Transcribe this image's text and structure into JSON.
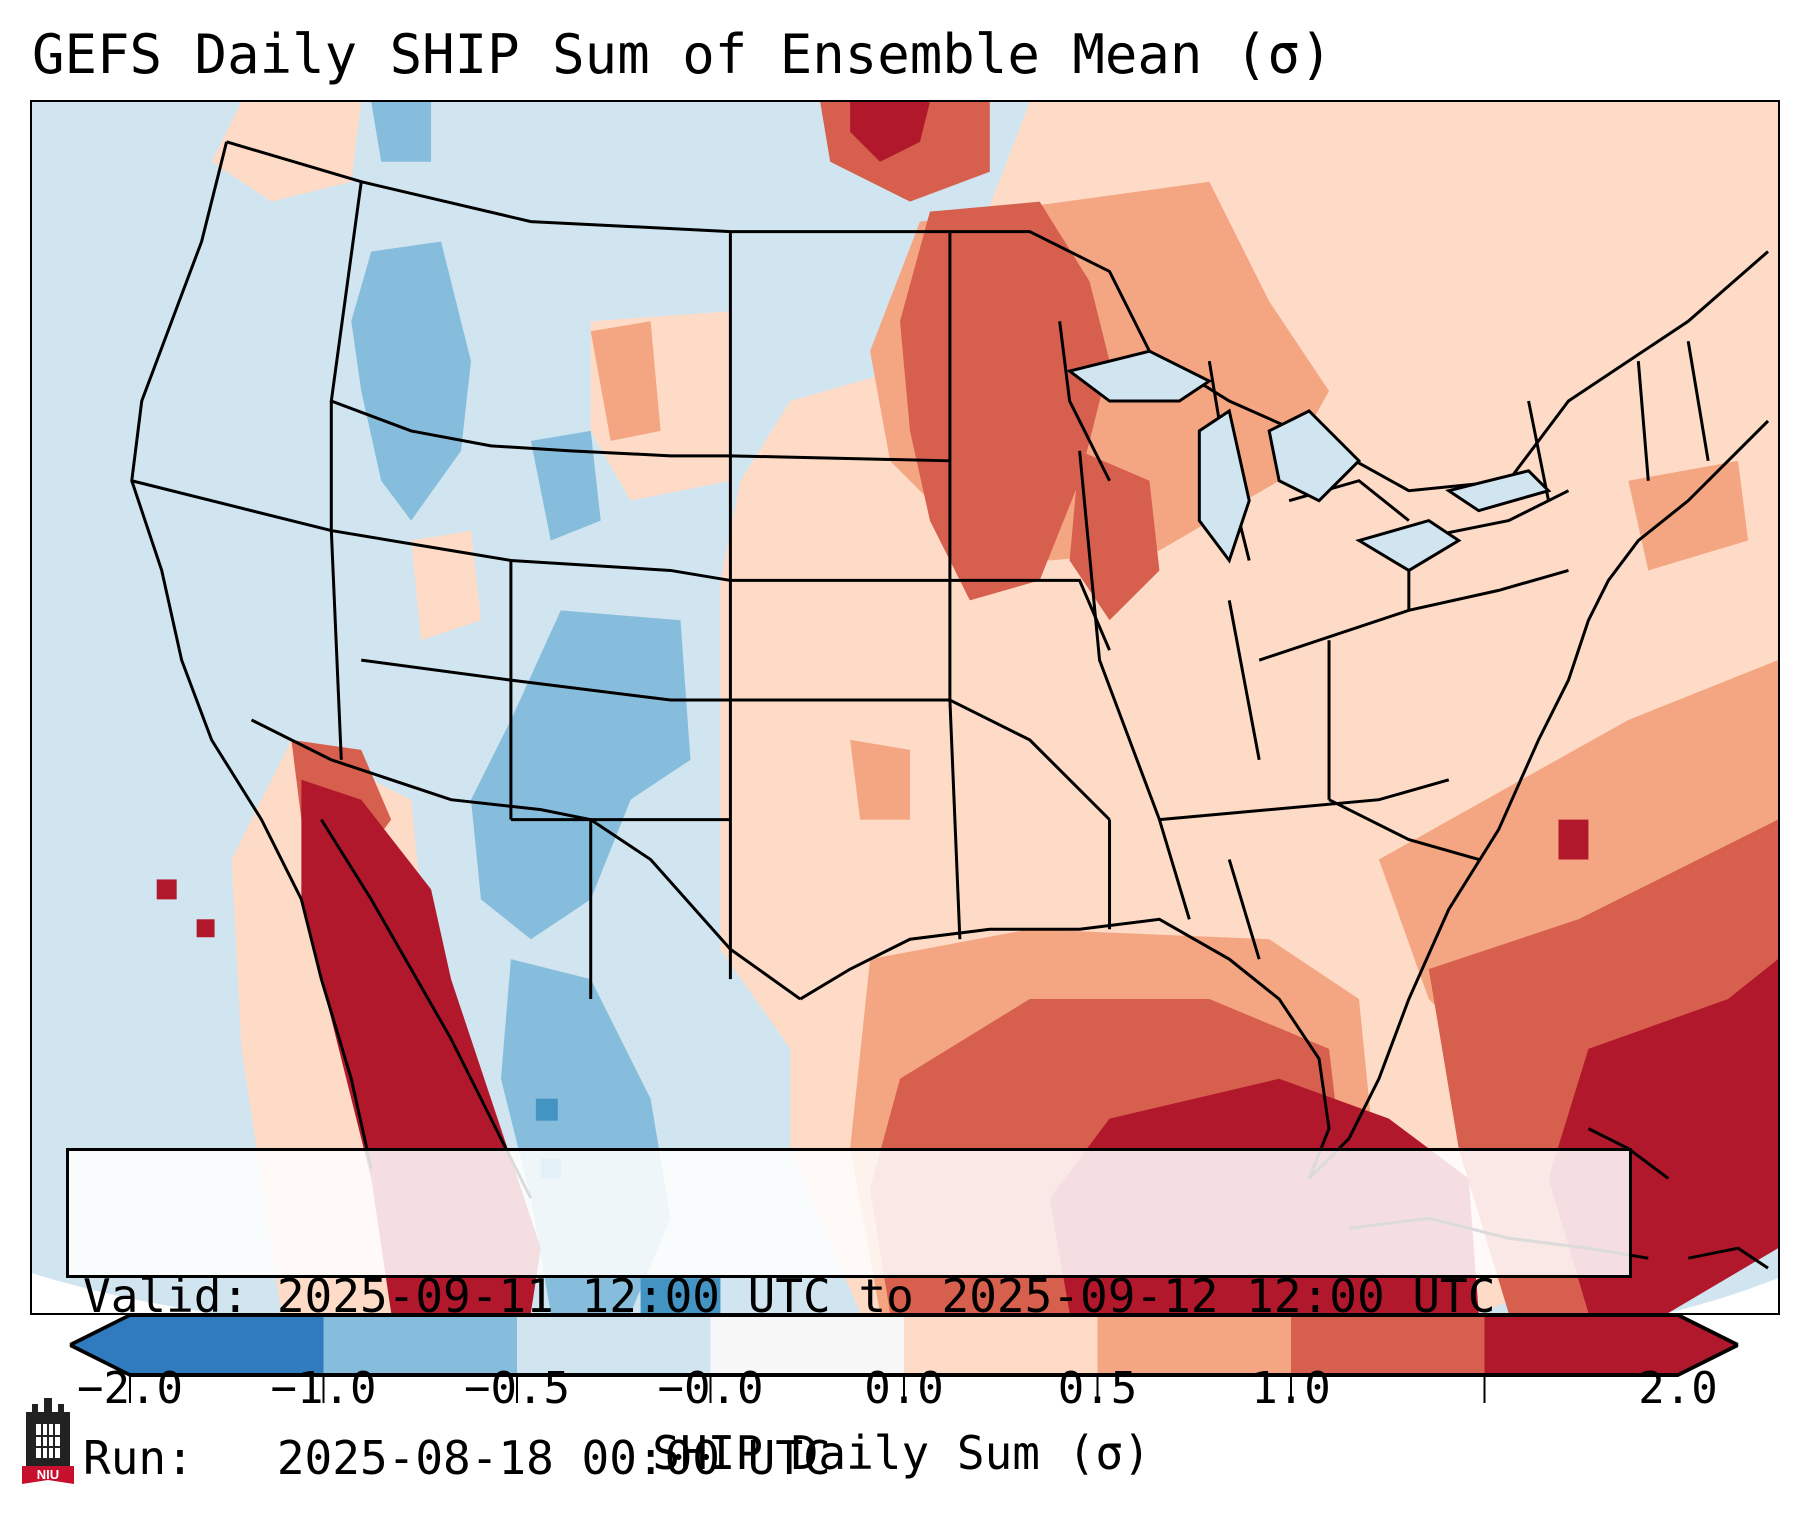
{
  "title": "GEFS Daily SHIP Sum of Ensemble Mean (σ)",
  "info": {
    "valid_line": "Valid: 2025-09-11 12:00 UTC to 2025-09-12 12:00 UTC",
    "run_line": "Run:   2025-08-18 00:00 UTC"
  },
  "colorbar": {
    "label": "SHIP Daily Sum (σ)",
    "ticks": [
      "−2.0",
      "−1.0",
      "−0.5",
      "−0.0",
      "0.0",
      "0.5",
      "1.0",
      "2.0"
    ],
    "colors": [
      "#2f7bbd",
      "#87bddc",
      "#d1e5f0",
      "#f7f7f7",
      "#fddbc7",
      "#f4a582",
      "#d6604d",
      "#b2182b"
    ]
  },
  "map": {
    "ocean_color": "#d1e5f0",
    "border_color": "#000000"
  },
  "logo": {
    "text": "NIU"
  }
}
